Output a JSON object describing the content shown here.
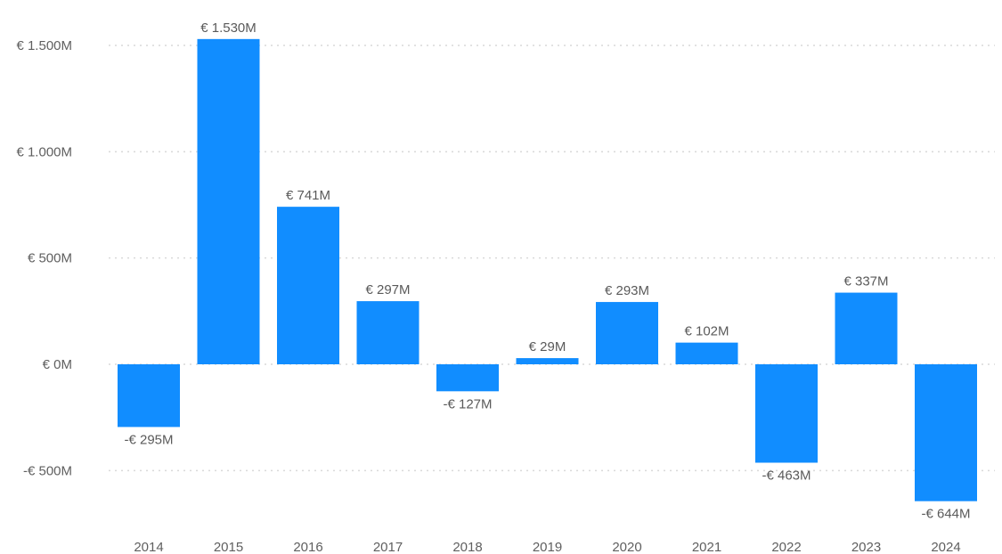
{
  "chart_data": {
    "type": "bar",
    "categories": [
      "2014",
      "2015",
      "2016",
      "2017",
      "2018",
      "2019",
      "2020",
      "2021",
      "2022",
      "2023",
      "2024"
    ],
    "values": [
      -295,
      1530,
      741,
      297,
      -127,
      29,
      293,
      102,
      -463,
      337,
      -644
    ],
    "data_labels": [
      "-€ 295M",
      "€ 1.530M",
      "€ 741M",
      "€ 297M",
      "-€ 127M",
      "€ 29M",
      "€ 293M",
      "€ 102M",
      "-€ 463M",
      "€ 337M",
      "-€ 644M"
    ],
    "y_ticks": [
      1500,
      1000,
      500,
      0,
      -500
    ],
    "y_tick_labels": [
      "€ 1.500M",
      "€ 1.000M",
      "€ 500M",
      "€ 0M",
      "-€ 500M"
    ],
    "ylim": [
      -750,
      1650
    ],
    "grid": true,
    "color": "#118DFF",
    "title": "",
    "xlabel": "",
    "ylabel": ""
  }
}
